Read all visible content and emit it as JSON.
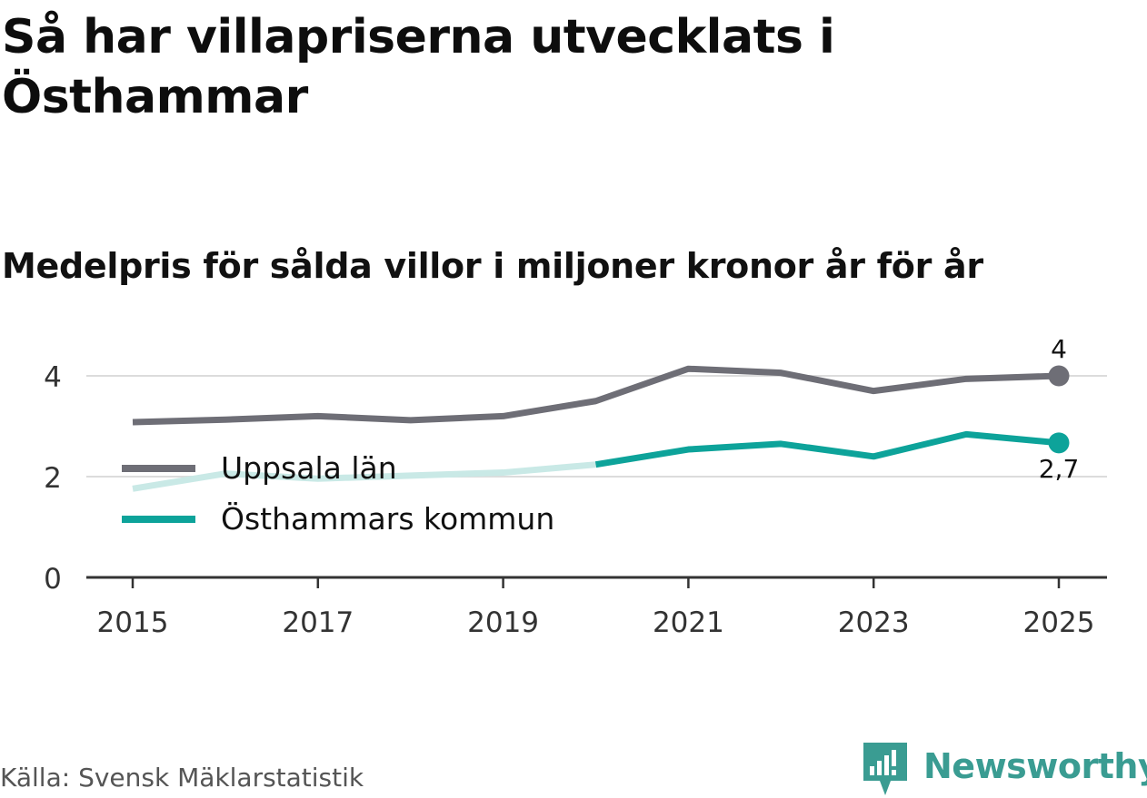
{
  "title": "Så har villapriserna utvecklats i Östhammar",
  "subtitle": "Medelpris för sålda villor i miljoner kronor år för år",
  "source": "Källa: Svensk Mäklarstatistik",
  "brand": {
    "name": "Newsworthy",
    "color": "#3a9c92"
  },
  "chart_data": {
    "type": "line",
    "title": "Så har villapriserna utvecklats i Östhammar",
    "subtitle": "Medelpris för sålda villor i miljoner kronor år för år",
    "xlabel": "",
    "ylabel": "",
    "x": [
      2015,
      2016,
      2017,
      2018,
      2019,
      2020,
      2021,
      2022,
      2023,
      2024,
      2025
    ],
    "x_ticks": [
      "2015",
      "2017",
      "2019",
      "2021",
      "2023",
      "2025"
    ],
    "y_ticks": [
      "0",
      "2",
      "4"
    ],
    "ylim": [
      0,
      4.4
    ],
    "grid": true,
    "legend_position": "left-middle",
    "series": [
      {
        "name": "Uppsala län",
        "color": "#6e6e76",
        "values": [
          3.08,
          3.13,
          3.2,
          3.12,
          3.2,
          3.5,
          4.14,
          4.06,
          3.7,
          3.94,
          4.0
        ],
        "end_label": "4"
      },
      {
        "name": "Östhammars kommun",
        "color": "#0da39a",
        "faded_color": "#c9e9e6",
        "faded_until_index": 5,
        "values": [
          1.76,
          2.06,
          1.96,
          2.02,
          2.08,
          2.24,
          2.54,
          2.65,
          2.4,
          2.84,
          2.67
        ],
        "end_label": "2,7"
      }
    ]
  }
}
